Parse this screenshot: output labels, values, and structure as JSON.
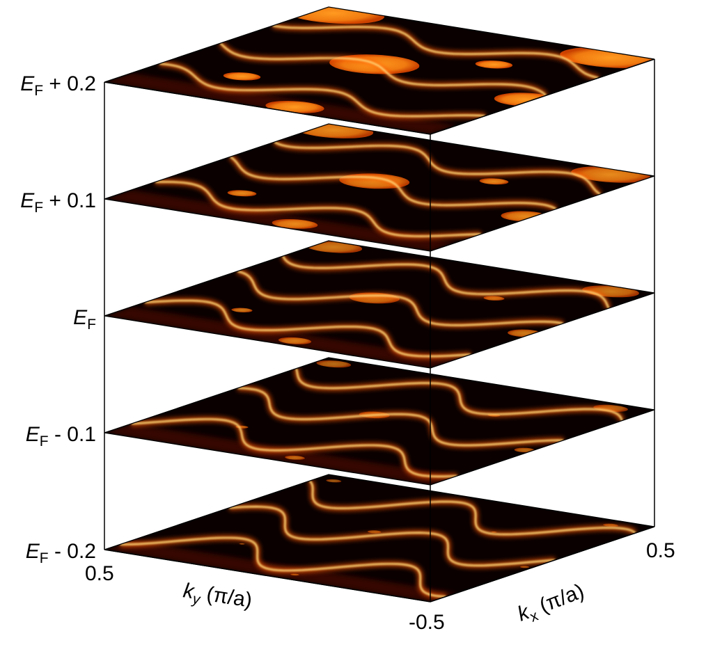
{
  "chart_data": {
    "type": "heatmap",
    "description_kind": "stacked constant-energy spectral maps",
    "layers": [
      {
        "energy_label_main": "E",
        "energy_label_sub": "F",
        "energy_label_suffix": " + 0.2",
        "offset": 0.2
      },
      {
        "energy_label_main": "E",
        "energy_label_sub": "F",
        "energy_label_suffix": " + 0.1",
        "offset": 0.1
      },
      {
        "energy_label_main": "E",
        "energy_label_sub": "F",
        "energy_label_suffix": "",
        "offset": 0.0
      },
      {
        "energy_label_main": "E",
        "energy_label_sub": "F",
        "energy_label_suffix": " - 0.1",
        "offset": -0.1
      },
      {
        "energy_label_main": "E",
        "energy_label_sub": "F",
        "energy_label_suffix": " - 0.2",
        "offset": -0.2
      }
    ],
    "ky_axis": {
      "label_var": "k",
      "label_sub": "y",
      "label_unit": " (π/a)",
      "min_label": "0.5",
      "max_label": "-0.5",
      "range": [
        0.5,
        -0.5
      ]
    },
    "kx_axis": {
      "label_var": "k",
      "label_sub": "x",
      "label_unit": " (π/a)",
      "max_label": "0.5",
      "range": [
        -0.5,
        0.5
      ]
    },
    "colormap": [
      "#000000",
      "#3a0000",
      "#8a0a00",
      "#d42a00",
      "#ff7a10",
      "#ffd060",
      "#fff6c8"
    ],
    "grid": false,
    "legend": "none"
  }
}
